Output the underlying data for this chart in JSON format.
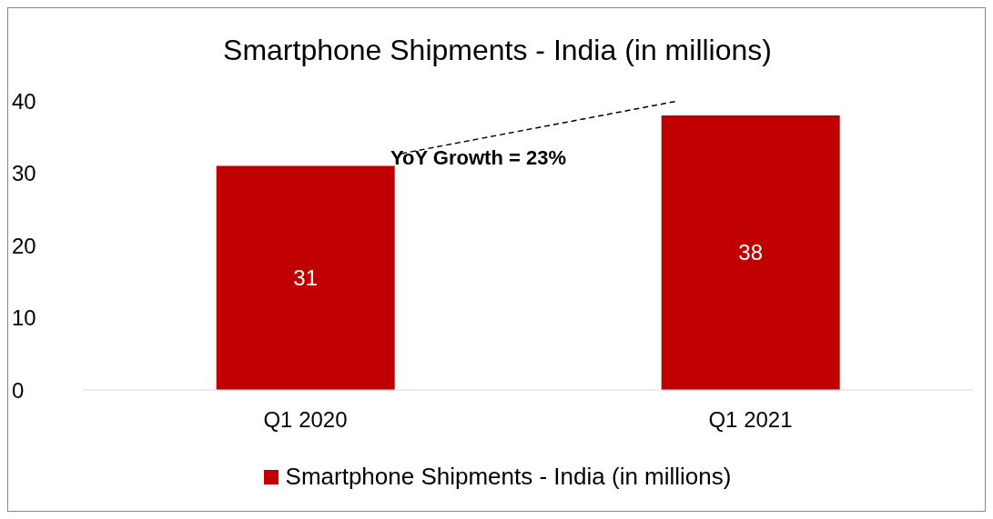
{
  "chart_data": {
    "type": "bar",
    "title": "Smartphone Shipments - India (in millions)",
    "categories": [
      "Q1 2020",
      "Q1 2021"
    ],
    "series": [
      {
        "name": "Smartphone Shipments - India (in millions)",
        "color": "#c00000",
        "values": [
          31,
          38
        ]
      }
    ],
    "ylim": [
      0,
      40
    ],
    "yticks": [
      0,
      10,
      20,
      30,
      40
    ],
    "grid": false,
    "legend": "bottom",
    "data_labels": true,
    "annotations": [
      "YoY Growth = 23%"
    ]
  }
}
